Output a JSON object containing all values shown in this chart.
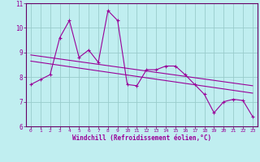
{
  "xlabel": "Windchill (Refroidissement éolien,°C)",
  "bg_color": "#c0eef0",
  "line_color": "#990099",
  "grid_color": "#99cccc",
  "axis_color": "#660066",
  "xlim": [
    -0.5,
    23.5
  ],
  "ylim": [
    6,
    11
  ],
  "xticks": [
    0,
    1,
    2,
    3,
    4,
    5,
    6,
    7,
    8,
    9,
    10,
    11,
    12,
    13,
    14,
    15,
    16,
    17,
    18,
    19,
    20,
    21,
    22,
    23
  ],
  "yticks": [
    6,
    7,
    8,
    9,
    10,
    11
  ],
  "data_x": [
    0,
    1,
    2,
    3,
    4,
    5,
    6,
    7,
    8,
    9,
    10,
    11,
    12,
    13,
    14,
    15,
    16,
    17,
    18,
    19,
    20,
    21,
    22,
    23
  ],
  "data_y": [
    7.7,
    7.9,
    8.1,
    9.6,
    10.3,
    8.8,
    9.1,
    8.6,
    10.7,
    10.3,
    7.7,
    7.65,
    8.3,
    8.3,
    8.45,
    8.45,
    8.1,
    7.7,
    7.3,
    6.55,
    7.0,
    7.1,
    7.05,
    6.4
  ],
  "trend1_x": [
    0,
    23
  ],
  "trend1_y": [
    8.9,
    7.65
  ],
  "trend2_x": [
    0,
    23
  ],
  "trend2_y": [
    8.65,
    7.35
  ]
}
